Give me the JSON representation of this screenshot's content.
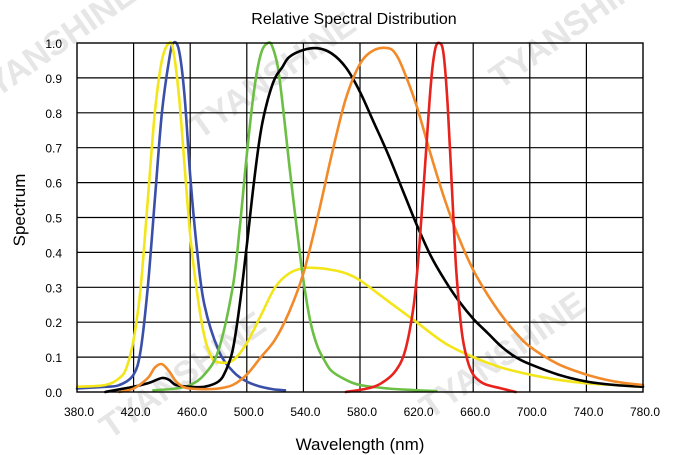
{
  "chart_data": {
    "type": "line",
    "title": "Relative Spectral Distribution",
    "xlabel": "Wavelength (nm)",
    "ylabel": "Spectrum",
    "xlim": [
      380,
      780
    ],
    "ylim": [
      0,
      1.0
    ],
    "x_ticks": [
      "380.0",
      "420.0",
      "460.0",
      "500.0",
      "540.0",
      "580.0",
      "620.0",
      "660.0",
      "700.0",
      "740.0",
      "780.0"
    ],
    "y_ticks": [
      "0.0",
      "0.1",
      "0.2",
      "0.3",
      "0.4",
      "0.5",
      "0.6",
      "0.7",
      "0.8",
      "0.9",
      "1.0"
    ],
    "grid": true,
    "legend": "none",
    "watermark": "TYANSHINE",
    "series": [
      {
        "name": "blue",
        "color": "#3a4fa8",
        "x": [
          380,
          400,
          410,
          420,
          425,
          430,
          435,
          440,
          445,
          448,
          452,
          456,
          460,
          465,
          470,
          480,
          490,
          500,
          510,
          520,
          527
        ],
        "y": [
          0.01,
          0.015,
          0.02,
          0.05,
          0.12,
          0.3,
          0.55,
          0.8,
          0.95,
          1.0,
          0.98,
          0.85,
          0.62,
          0.4,
          0.25,
          0.12,
          0.06,
          0.03,
          0.015,
          0.007,
          0.005
        ]
      },
      {
        "name": "yellow",
        "color": "#f2e61a",
        "x": [
          380,
          400,
          410,
          415,
          420,
          425,
          430,
          435,
          440,
          445,
          448,
          452,
          456,
          460,
          465,
          470,
          475,
          480,
          490,
          500,
          510,
          520,
          530,
          540,
          550,
          560,
          570,
          580,
          600,
          620,
          640,
          660,
          680,
          700,
          720,
          740,
          760,
          780
        ],
        "y": [
          0.015,
          0.02,
          0.04,
          0.07,
          0.15,
          0.3,
          0.55,
          0.8,
          0.95,
          1.0,
          0.98,
          0.85,
          0.65,
          0.45,
          0.28,
          0.16,
          0.1,
          0.085,
          0.09,
          0.14,
          0.22,
          0.3,
          0.34,
          0.355,
          0.355,
          0.35,
          0.34,
          0.32,
          0.26,
          0.2,
          0.14,
          0.1,
          0.07,
          0.05,
          0.035,
          0.025,
          0.02,
          0.015
        ]
      },
      {
        "name": "green",
        "color": "#6cbf45",
        "x": [
          434,
          450,
          460,
          470,
          480,
          490,
          495,
          500,
          505,
          510,
          515,
          518,
          522,
          526,
          530,
          535,
          540,
          545,
          550,
          555,
          560,
          570,
          580,
          600,
          620,
          634
        ],
        "y": [
          0.005,
          0.01,
          0.02,
          0.05,
          0.12,
          0.3,
          0.47,
          0.68,
          0.86,
          0.97,
          1.0,
          0.99,
          0.93,
          0.8,
          0.65,
          0.48,
          0.32,
          0.2,
          0.13,
          0.09,
          0.06,
          0.035,
          0.02,
          0.01,
          0.005,
          0.003
        ]
      },
      {
        "name": "black",
        "color": "#000000",
        "x": [
          400,
          420,
          430,
          440,
          445,
          450,
          460,
          470,
          480,
          485,
          490,
          495,
          500,
          505,
          510,
          515,
          520,
          525,
          530,
          540,
          550,
          560,
          570,
          580,
          590,
          600,
          610,
          620,
          630,
          640,
          650,
          660,
          670,
          680,
          690,
          700,
          720,
          740,
          760,
          780
        ],
        "y": [
          0.0,
          0.015,
          0.025,
          0.04,
          0.035,
          0.02,
          0.015,
          0.015,
          0.03,
          0.06,
          0.12,
          0.25,
          0.42,
          0.6,
          0.75,
          0.84,
          0.9,
          0.93,
          0.96,
          0.98,
          0.985,
          0.97,
          0.93,
          0.86,
          0.77,
          0.68,
          0.58,
          0.48,
          0.39,
          0.32,
          0.26,
          0.21,
          0.17,
          0.13,
          0.1,
          0.08,
          0.05,
          0.03,
          0.02,
          0.015
        ]
      },
      {
        "name": "orange",
        "color": "#f28a2a",
        "x": [
          410,
          420,
          430,
          435,
          440,
          445,
          450,
          455,
          460,
          470,
          480,
          490,
          500,
          510,
          520,
          530,
          540,
          550,
          560,
          570,
          580,
          590,
          600,
          605,
          610,
          620,
          630,
          640,
          650,
          660,
          670,
          680,
          690,
          700,
          720,
          740,
          760,
          780
        ],
        "y": [
          0.0,
          0.01,
          0.04,
          0.07,
          0.08,
          0.06,
          0.03,
          0.015,
          0.01,
          0.008,
          0.01,
          0.02,
          0.05,
          0.1,
          0.15,
          0.23,
          0.34,
          0.5,
          0.68,
          0.84,
          0.94,
          0.98,
          0.985,
          0.97,
          0.93,
          0.82,
          0.68,
          0.55,
          0.44,
          0.35,
          0.28,
          0.22,
          0.17,
          0.13,
          0.08,
          0.05,
          0.03,
          0.02
        ]
      },
      {
        "name": "red",
        "color": "#e8231e",
        "x": [
          570,
          585,
          595,
          605,
          612,
          618,
          622,
          626,
          630,
          633,
          636,
          639,
          642,
          645,
          648,
          652,
          656,
          660,
          665,
          670,
          680,
          690
        ],
        "y": [
          0.0,
          0.01,
          0.025,
          0.06,
          0.12,
          0.25,
          0.42,
          0.65,
          0.88,
          0.98,
          1.0,
          0.97,
          0.82,
          0.58,
          0.35,
          0.17,
          0.09,
          0.05,
          0.03,
          0.02,
          0.01,
          0.0
        ]
      }
    ]
  }
}
